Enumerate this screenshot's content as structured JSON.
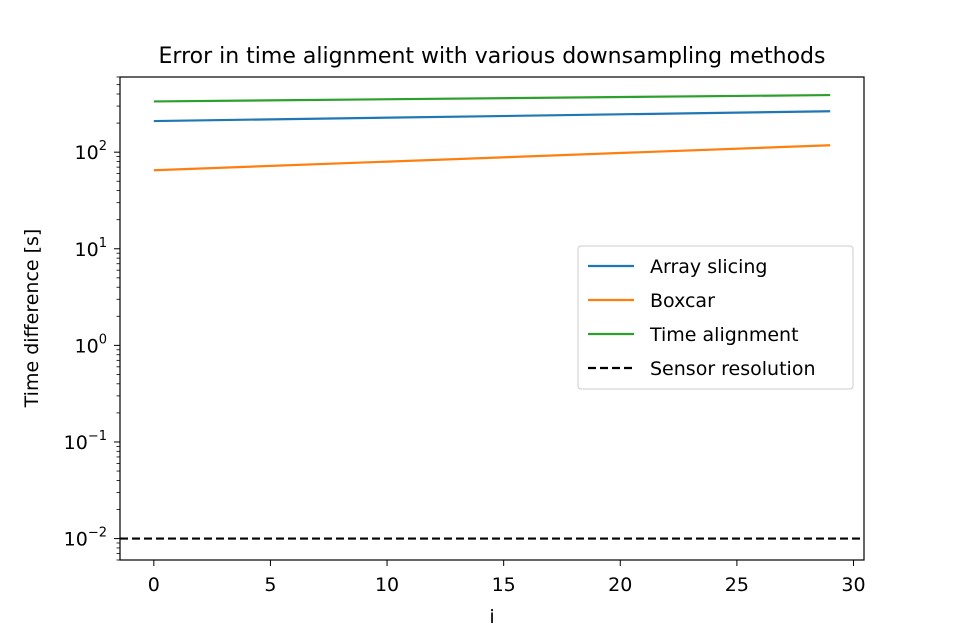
{
  "chart_data": {
    "type": "line",
    "title": "Error in time alignment with various downsampling methods",
    "xlabel": "i",
    "ylabel": "Time difference [s]",
    "xscale": "linear",
    "yscale": "log",
    "xlim": [
      -1.45,
      30.45
    ],
    "ylim": [
      0.006,
      600
    ],
    "xticks": [
      0,
      5,
      10,
      15,
      20,
      25,
      30
    ],
    "xtick_labels": [
      "0",
      "5",
      "10",
      "15",
      "20",
      "25",
      "30"
    ],
    "yticks": [
      {
        "value": 0.01,
        "base": "10",
        "exp": "−2"
      },
      {
        "value": 0.1,
        "base": "10",
        "exp": "−1"
      },
      {
        "value": 1,
        "base": "10",
        "exp": "0"
      },
      {
        "value": 10,
        "base": "10",
        "exp": "1"
      },
      {
        "value": 100,
        "base": "10",
        "exp": "2"
      }
    ],
    "grid": false,
    "legend_position": "center-right",
    "series": [
      {
        "name": "Array slicing",
        "color": "#1f77b4",
        "style": "solid",
        "x": [
          0,
          29
        ],
        "y": [
          210,
          265
        ]
      },
      {
        "name": "Boxcar",
        "color": "#ff7f0e",
        "style": "solid",
        "x": [
          0,
          29
        ],
        "y": [
          65,
          118
        ]
      },
      {
        "name": "Time alignment",
        "color": "#2ca02c",
        "style": "solid",
        "x": [
          0,
          29
        ],
        "y": [
          335,
          390
        ]
      },
      {
        "name": "Sensor resolution",
        "color": "#000000",
        "style": "dashed",
        "x": [
          -1.45,
          30.45
        ],
        "y": [
          0.01,
          0.01
        ]
      }
    ]
  }
}
